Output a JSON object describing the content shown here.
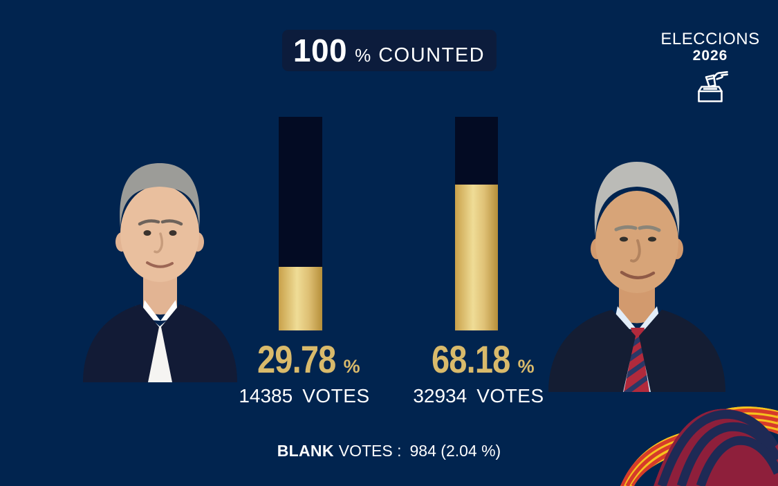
{
  "header": {
    "counted": {
      "value": "100",
      "percent_sign": "%",
      "label": "COUNTED"
    },
    "brand": {
      "line1": "ELECCIONS",
      "line2": "2026",
      "icon": "ballot-box-icon"
    }
  },
  "chart_data": {
    "type": "bar",
    "title": "100 % COUNTED",
    "categories": [
      "candidate_left",
      "candidate_right"
    ],
    "series": [
      {
        "name": "vote_share_pct",
        "values": [
          29.78,
          68.18
        ]
      },
      {
        "name": "votes",
        "values": [
          14385,
          32934
        ]
      }
    ],
    "percent_sign": "%",
    "votes_label": "VOTES",
    "ylim": [
      0,
      100
    ],
    "blank_votes": {
      "count": 984,
      "pct": 2.04
    },
    "legend": "none",
    "grid": false
  },
  "footer": {
    "blank_bold": "BLANK",
    "blank_rest": "VOTES :",
    "blank_value": "984 (2.04 %)"
  },
  "colors": {
    "background": "#01244F",
    "badge_bg": "#0C1C3C",
    "bar_track": "#030B23",
    "bar_fill_gold": "#E3C878",
    "accent_gold_text": "#D9BA6B",
    "text_white": "#FFFFFF",
    "senyera_yellow": "#F6C21E",
    "senyera_red": "#D63B2A",
    "blaugrana_maroon": "#8E1F3B",
    "blaugrana_navy": "#1E2A55"
  }
}
